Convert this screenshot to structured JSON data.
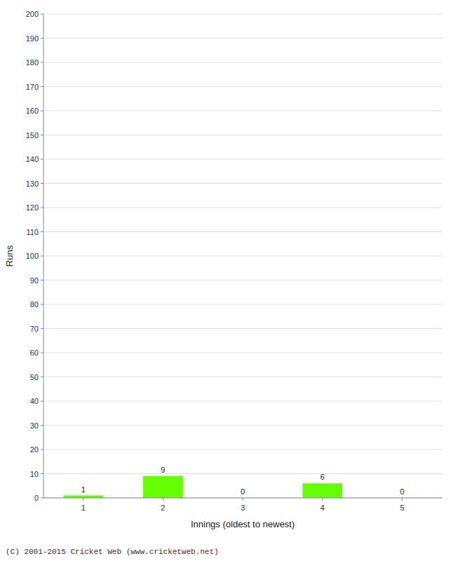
{
  "chart_data": {
    "type": "bar",
    "categories": [
      "1",
      "2",
      "3",
      "4",
      "5"
    ],
    "values": [
      1,
      9,
      0,
      6,
      0
    ],
    "color": "#66ff00",
    "x_label": "Innings (oldest to newest)",
    "y_label": "Runs",
    "ylim": [
      0,
      200
    ],
    "yticks": [
      0,
      10,
      20,
      30,
      40,
      50,
      60,
      70,
      80,
      90,
      100,
      110,
      120,
      130,
      140,
      150,
      160,
      170,
      180,
      190,
      200
    ],
    "grid": true,
    "data_labels": true,
    "annotation": "(C) 2001-2015 Cricket Web (www.cricketweb.net)"
  }
}
